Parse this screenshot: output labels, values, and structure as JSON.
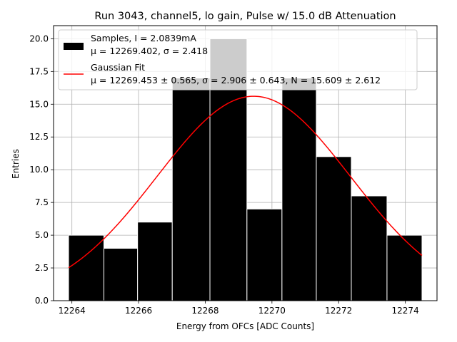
{
  "chart_data": {
    "type": "bar",
    "title": "Run 3043, channel5, lo gain, Pulse w/ 15.0 dB Attenuation",
    "xlabel": "Energy from OFCs [ADC Counts]",
    "ylabel": "Entries",
    "xlim": [
      12263.45,
      12274.95
    ],
    "ylim": [
      0,
      21
    ],
    "grid": true,
    "legend_position": "top-left",
    "xticks": [
      12264,
      12266,
      12268,
      12270,
      12272,
      12274
    ],
    "xtick_labels": [
      "12264",
      "12266",
      "12268",
      "12270",
      "12272",
      "12274"
    ],
    "yticks": [
      0,
      2.5,
      5,
      7.5,
      10,
      12.5,
      15,
      17.5,
      20
    ],
    "ytick_labels": [
      "0.0",
      "2.5",
      "5.0",
      "7.5",
      "10.0",
      "12.5",
      "15.0",
      "17.5",
      "20.0"
    ],
    "bin_edges": [
      12263.9,
      12264.96,
      12265.97,
      12267.01,
      12268.14,
      12269.25,
      12270.3,
      12271.33,
      12272.38,
      12273.45,
      12274.5
    ],
    "values": [
      5,
      4,
      6,
      17,
      20,
      7,
      17,
      11,
      8,
      5
    ],
    "bar_color": "#000000",
    "bar_edge_color": "#ffffff",
    "fit": {
      "type": "gaussian",
      "mu": 12269.453,
      "sigma": 2.906,
      "N": 15.609,
      "x_range": [
        12263.9,
        12274.5
      ],
      "color": "#ff0000"
    },
    "legend": [
      {
        "swatch": "bar",
        "color": "#000000",
        "line1": "Samples, I = 2.0839mA",
        "line2": "μ = 12269.402, σ = 2.418"
      },
      {
        "swatch": "line",
        "color": "#ff0000",
        "line1": "Gaussian Fit",
        "line2": "μ = 12269.453 ± 0.565, σ = 2.906 ± 0.643, N = 15.609 ± 2.612"
      }
    ]
  }
}
